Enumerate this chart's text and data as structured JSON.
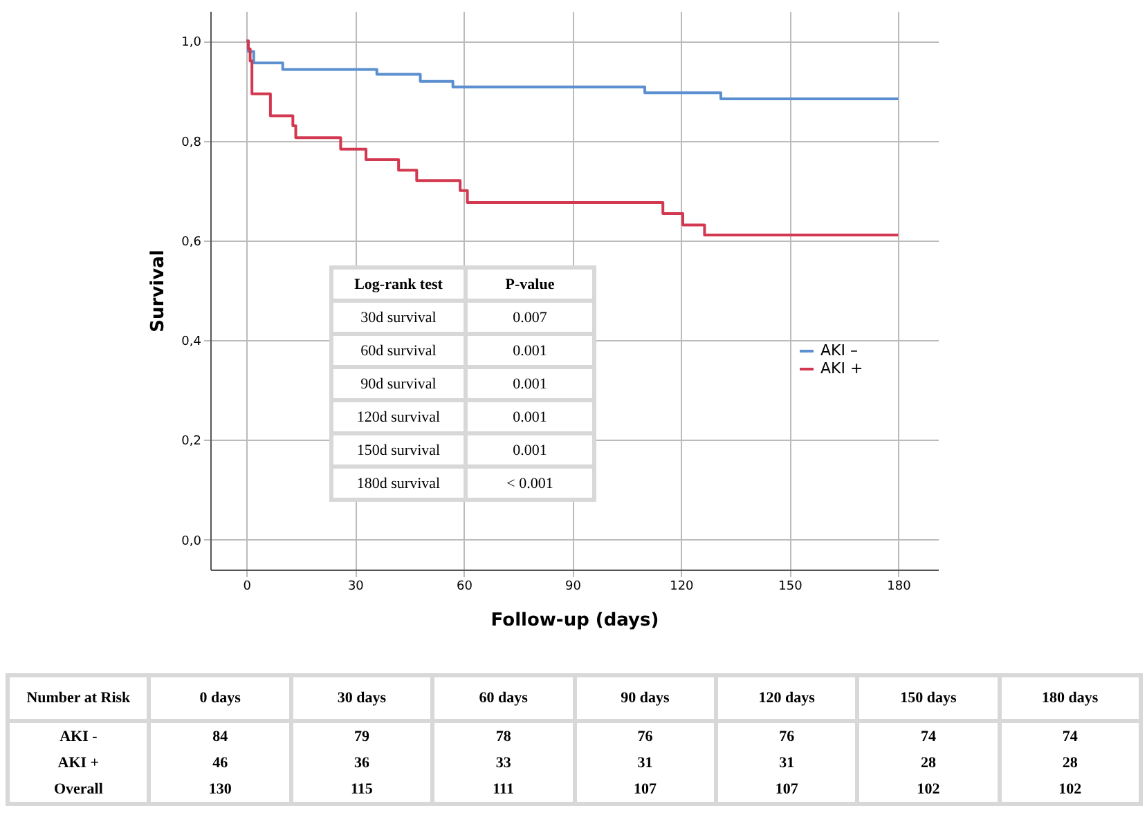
{
  "chart_data": [
    {
      "type": "step",
      "xlabel": "Follow-up (days)",
      "ylabel": "Survival",
      "xlim": [
        -10,
        191
      ],
      "ylim": [
        -0.06,
        1.06
      ],
      "xticks": [
        0,
        30,
        60,
        90,
        120,
        150,
        180
      ],
      "yticks": [
        {
          "value": 0,
          "label": "0,0"
        },
        {
          "value": 0.2,
          "label": "0,2"
        },
        {
          "value": 0.4,
          "label": "0,4"
        },
        {
          "value": 0.6,
          "label": "0,6"
        },
        {
          "value": 0.8,
          "label": "0,8"
        },
        {
          "value": 1,
          "label": "1,0"
        }
      ],
      "grid": true,
      "legend": "right",
      "series": [
        {
          "name": "AKI –",
          "color": "#5b8fd0",
          "x": [
            0,
            0.5,
            2,
            10,
            36,
            48,
            57,
            110,
            131,
            180
          ],
          "values": [
            1,
            0.979,
            0.956,
            0.943,
            0.933,
            0.919,
            0.908,
            0.896,
            0.884,
            0.884
          ]
        },
        {
          "name": "AKI +",
          "color": "#d2384f",
          "x": [
            0,
            0.5,
            1,
            1.5,
            6.6,
            12.8,
            13.6,
            26,
            33,
            42,
            47,
            59,
            61,
            115,
            120.5,
            126.5,
            180
          ],
          "values": [
            1,
            0.984,
            0.96,
            0.894,
            0.85,
            0.83,
            0.806,
            0.783,
            0.762,
            0.741,
            0.72,
            0.7,
            0.676,
            0.654,
            0.631,
            0.611,
            0.611
          ]
        }
      ],
      "annotations": [
        "Log-rank test",
        "P-value",
        "30d survival",
        "0.007",
        "60d survival",
        "0.001",
        "90d survival",
        "0.001",
        "120d survival",
        "0.001",
        "150d survival",
        "0.001",
        "180d survival",
        "< 0.001"
      ]
    },
    {
      "type": "heatmap",
      "title": "Number at Risk",
      "categories": [
        "0 days",
        "30 days",
        "60 days",
        "90 days",
        "120 days",
        "150 days",
        "180 days"
      ],
      "data_labels": true,
      "y_categories": [
        "AKI -",
        "AKI +",
        "Overall"
      ],
      "cells": [
        [
          84,
          79,
          78,
          76,
          76,
          74,
          74
        ],
        [
          46,
          36,
          33,
          31,
          31,
          28,
          28
        ],
        [
          130,
          115,
          111,
          107,
          107,
          102,
          102
        ]
      ]
    }
  ]
}
